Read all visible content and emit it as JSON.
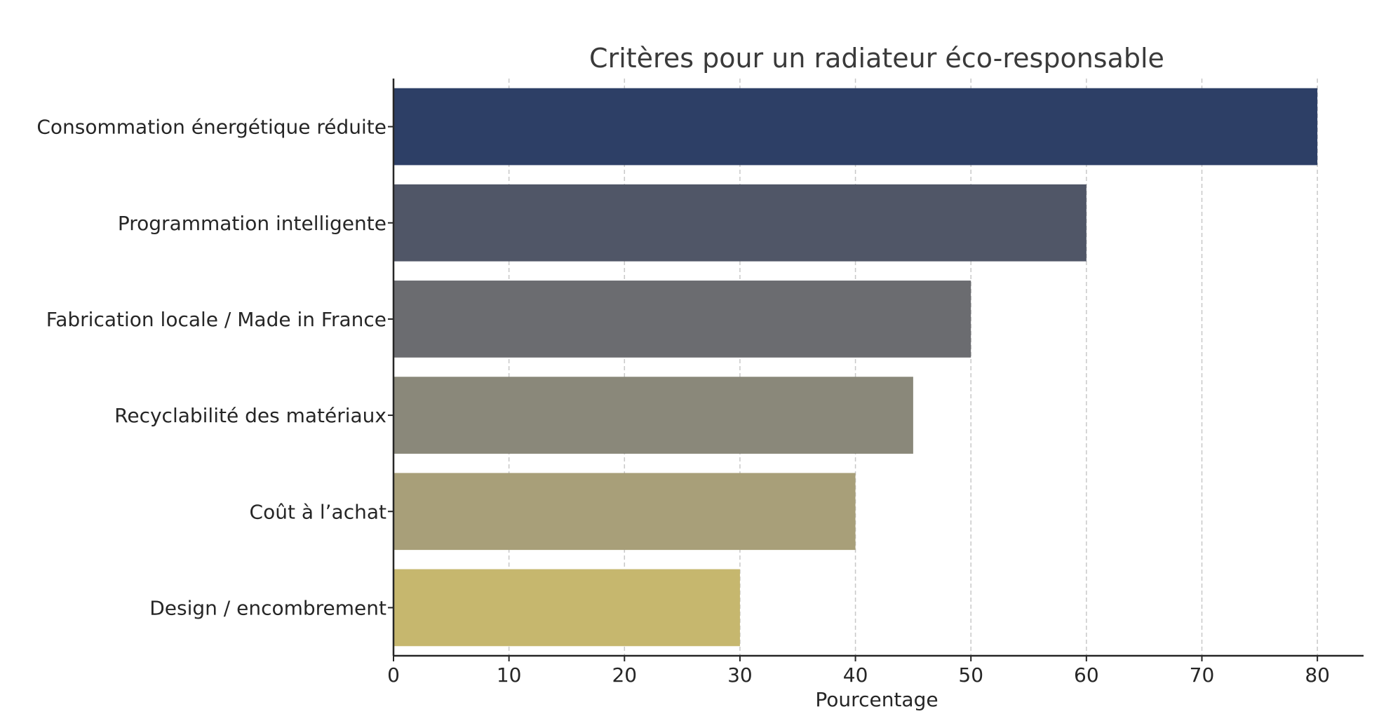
{
  "chart_data": {
    "type": "bar",
    "orientation": "horizontal",
    "title": "Critères pour un radiateur éco-responsable",
    "xlabel": "Pourcentage",
    "ylabel": "",
    "xlim": [
      0,
      84
    ],
    "xticks": [
      0,
      10,
      20,
      30,
      40,
      50,
      60,
      70,
      80
    ],
    "grid": "x-dashed",
    "legend": "none",
    "categories": [
      "Consommation énergétique réduite",
      "Programmation intelligente",
      "Fabrication locale / Made in France",
      "Recyclabilité des matériaux",
      "Coût à l’achat",
      "Design / encombrement"
    ],
    "values": [
      80,
      60,
      50,
      45,
      40,
      30
    ],
    "colors": [
      "#2d3f66",
      "#505667",
      "#6b6c70",
      "#8a887a",
      "#a89f79",
      "#c6b76e"
    ]
  }
}
